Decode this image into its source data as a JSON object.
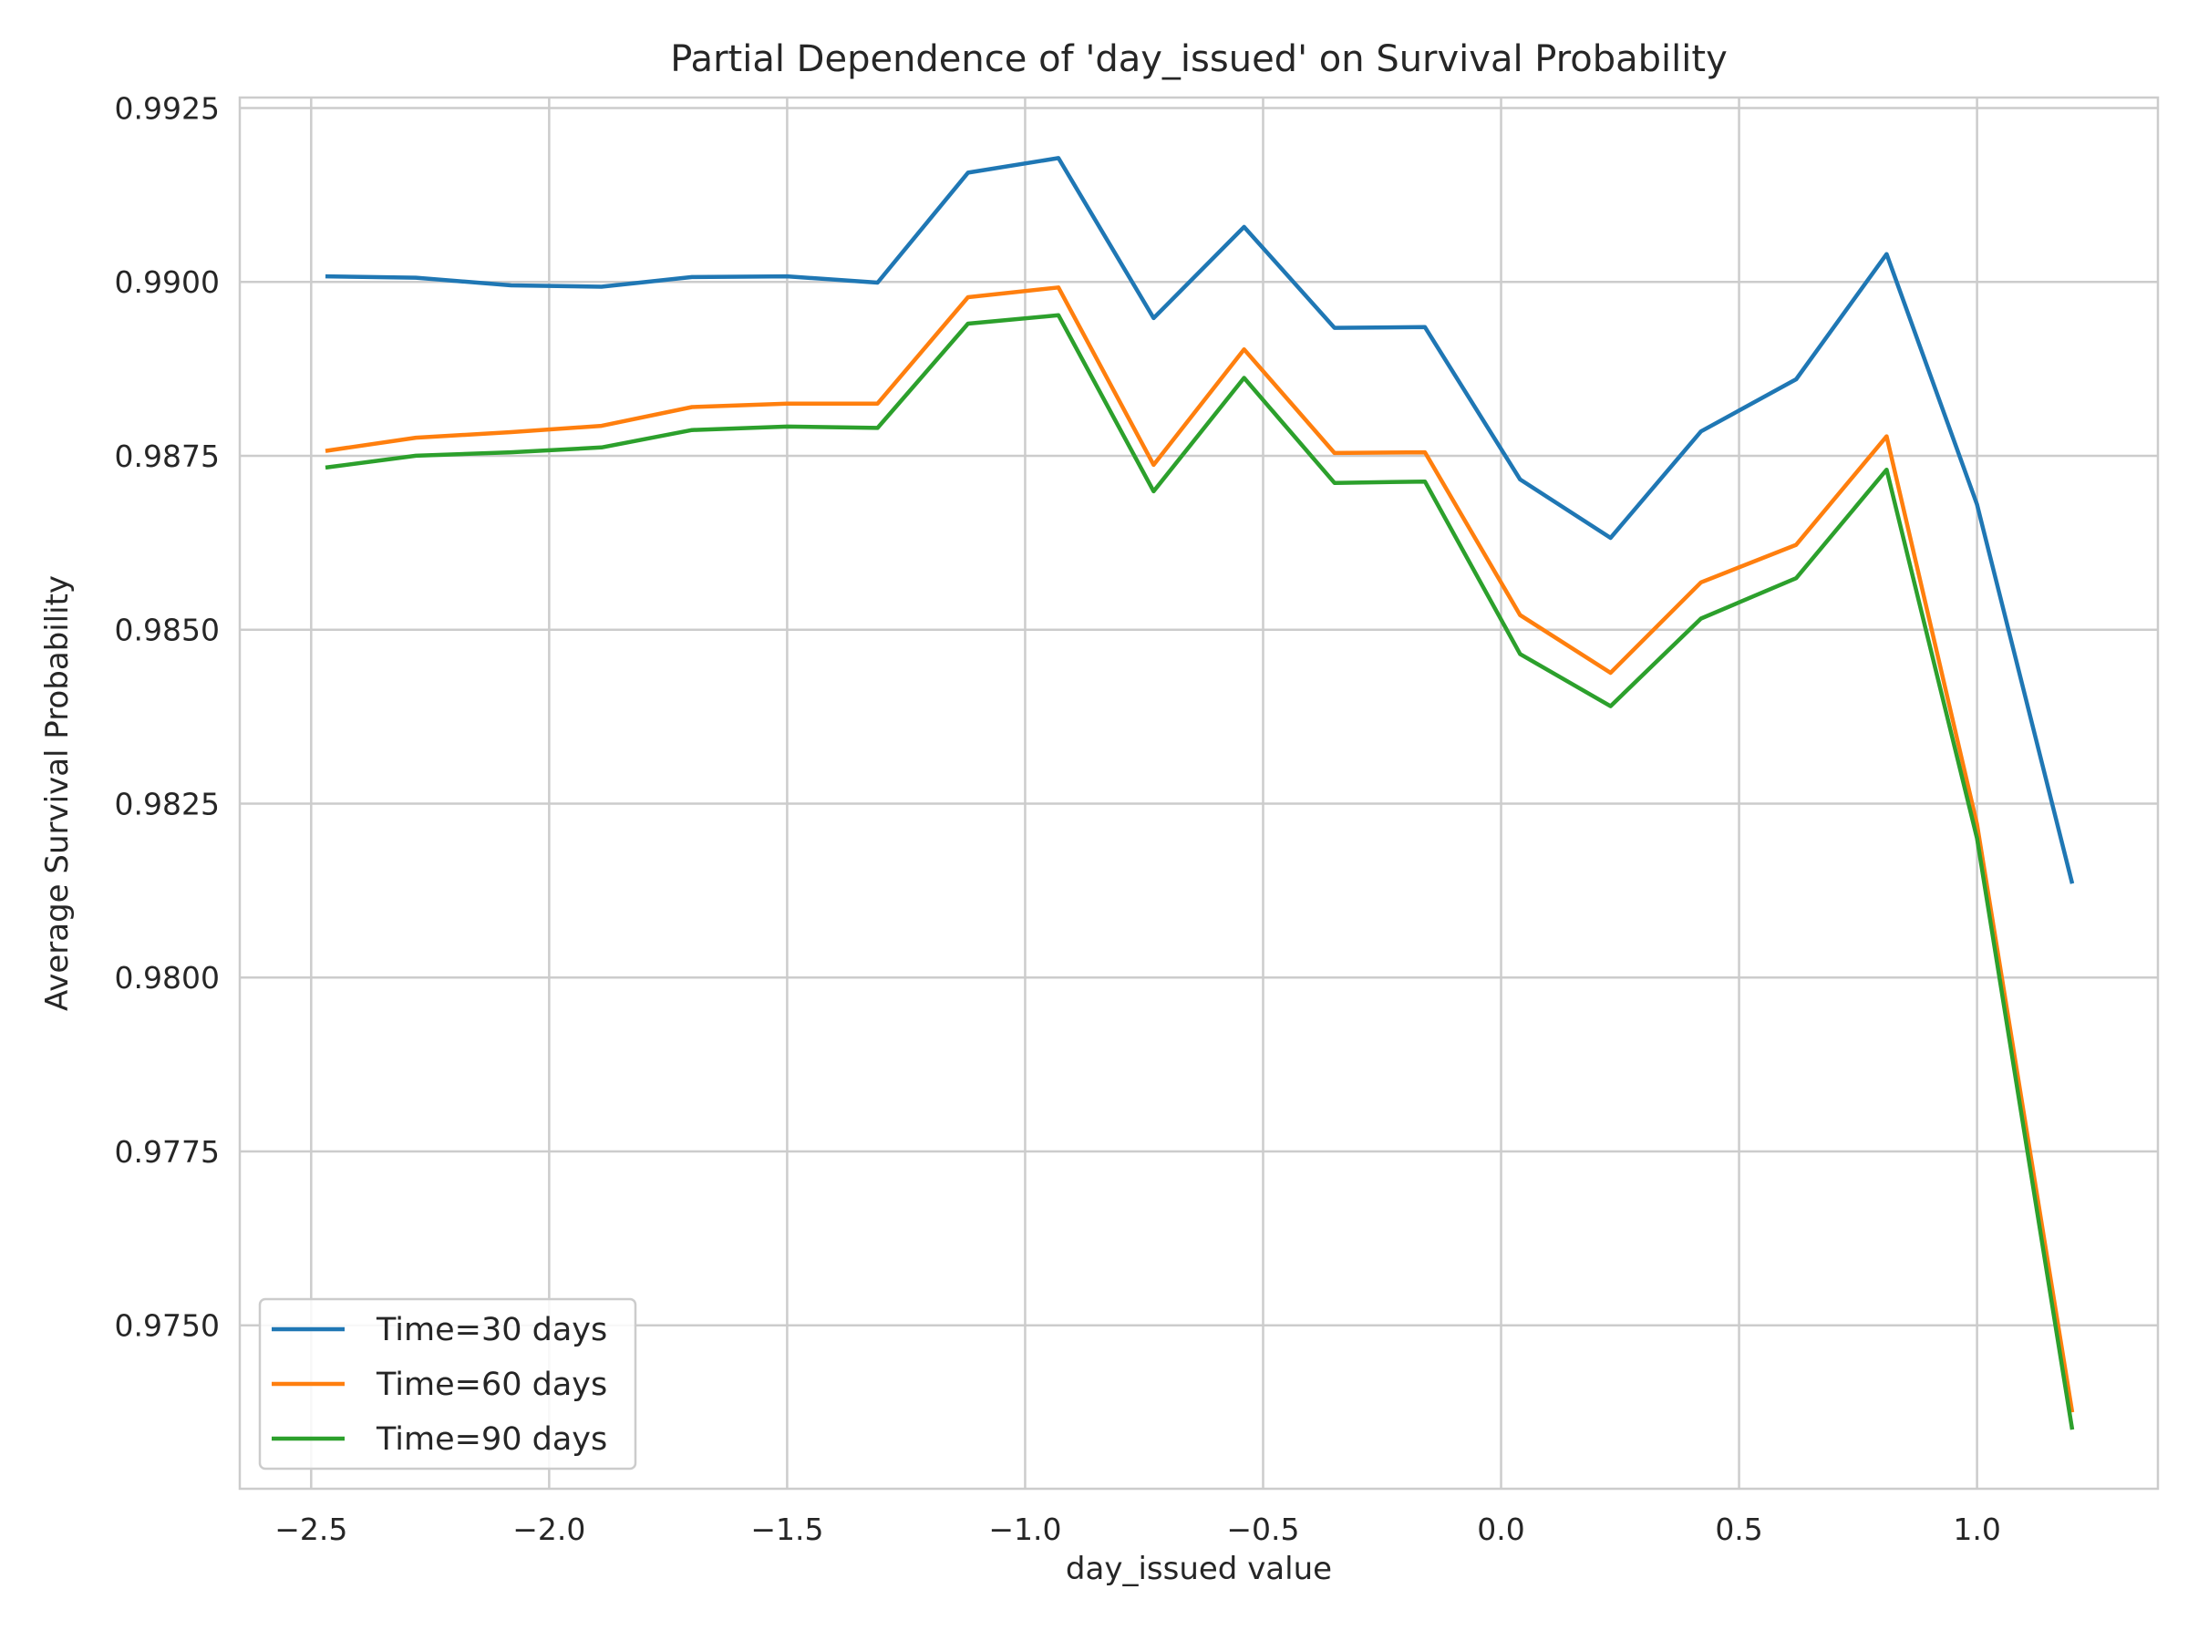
{
  "chart_data": {
    "type": "line",
    "title": "Partial Dependence of 'day_issued' on Survival Probability",
    "xlabel": "day_issued value",
    "ylabel": "Average Survival Probability",
    "xlim": [
      -2.65,
      1.38
    ],
    "ylim": [
      0.97265,
      0.99265
    ],
    "x_ticks": [
      -2.5,
      -2.0,
      -1.5,
      -1.0,
      -0.5,
      0.0,
      0.5,
      1.0
    ],
    "x_tick_labels": [
      "−2.5",
      "−2.0",
      "−1.5",
      "−1.0",
      "−0.5",
      "0.0",
      "0.5",
      "1.0"
    ],
    "y_ticks": [
      0.975,
      0.9775,
      0.98,
      0.9825,
      0.985,
      0.9875,
      0.99,
      0.9925
    ],
    "y_tick_labels": [
      "0.9750",
      "0.9775",
      "0.9800",
      "0.9825",
      "0.9850",
      "0.9875",
      "0.9900",
      "0.9925"
    ],
    "grid": true,
    "legend_position": "lower-left",
    "x": [
      -2.47,
      -2.28,
      -2.08,
      -1.89,
      -1.7,
      -1.5,
      -1.31,
      -1.12,
      -0.93,
      -0.73,
      -0.54,
      -0.35,
      -0.16,
      0.04,
      0.23,
      0.42,
      0.62,
      0.81,
      1.0,
      1.2
    ],
    "series": [
      {
        "name": "Time=30 days",
        "color": "#1f77b4",
        "values": [
          0.99008,
          0.99006,
          0.98995,
          0.98993,
          0.99007,
          0.99008,
          0.98999,
          0.99157,
          0.99178,
          0.98948,
          0.99079,
          0.98934,
          0.98935,
          0.98716,
          0.98632,
          0.98785,
          0.9886,
          0.9904,
          0.9868,
          0.98135
        ]
      },
      {
        "name": "Time=60 days",
        "color": "#ff7f0e",
        "values": [
          0.98757,
          0.98776,
          0.98784,
          0.98793,
          0.9882,
          0.98825,
          0.98825,
          0.98978,
          0.98992,
          0.98737,
          0.98903,
          0.98754,
          0.98755,
          0.98521,
          0.98438,
          0.98568,
          0.98622,
          0.98778,
          0.9822,
          0.97375
        ]
      },
      {
        "name": "Time=90 days",
        "color": "#2ca02c",
        "values": [
          0.98733,
          0.9875,
          0.98755,
          0.98762,
          0.98787,
          0.98792,
          0.9879,
          0.9894,
          0.98952,
          0.98699,
          0.98862,
          0.98711,
          0.98713,
          0.98465,
          0.9839,
          0.98516,
          0.98574,
          0.9873,
          0.982,
          0.9735
        ]
      }
    ]
  }
}
